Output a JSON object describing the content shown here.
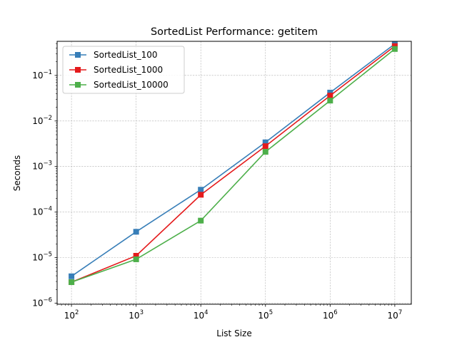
{
  "chart_data": {
    "type": "line",
    "title": "SortedList Performance: getitem",
    "xlabel": "List Size",
    "ylabel": "Seconds",
    "xscale": "log",
    "yscale": "log",
    "xlim": [
      60,
      18000000
    ],
    "ylim": [
      9.5e-07,
      0.56
    ],
    "x": [
      100,
      1000,
      10000,
      100000,
      1000000,
      10000000
    ],
    "xticks": [
      {
        "base": "10",
        "exp": "2"
      },
      {
        "base": "10",
        "exp": "3"
      },
      {
        "base": "10",
        "exp": "4"
      },
      {
        "base": "10",
        "exp": "5"
      },
      {
        "base": "10",
        "exp": "6"
      },
      {
        "base": "10",
        "exp": "7"
      }
    ],
    "yticks": [
      {
        "base": "10",
        "exp": "−6"
      },
      {
        "base": "10",
        "exp": "−5"
      },
      {
        "base": "10",
        "exp": "−4"
      },
      {
        "base": "10",
        "exp": "−3"
      },
      {
        "base": "10",
        "exp": "−2"
      },
      {
        "base": "10",
        "exp": "−1"
      }
    ],
    "grid": true,
    "legend_position": "top-left",
    "series": [
      {
        "name": "SortedList_100",
        "color": "#377eb8",
        "marker": "square",
        "values": [
          3.9e-06,
          3.7e-05,
          0.00031,
          0.0034,
          0.042,
          0.49
        ]
      },
      {
        "name": "SortedList_1000",
        "color": "#e41a1c",
        "marker": "square",
        "values": [
          2.9e-06,
          1.1e-05,
          0.00024,
          0.0028,
          0.036,
          0.44
        ]
      },
      {
        "name": "SortedList_10000",
        "color": "#4daf4a",
        "marker": "square",
        "values": [
          2.9e-06,
          9.2e-06,
          6.5e-05,
          0.0021,
          0.028,
          0.38
        ]
      }
    ]
  }
}
